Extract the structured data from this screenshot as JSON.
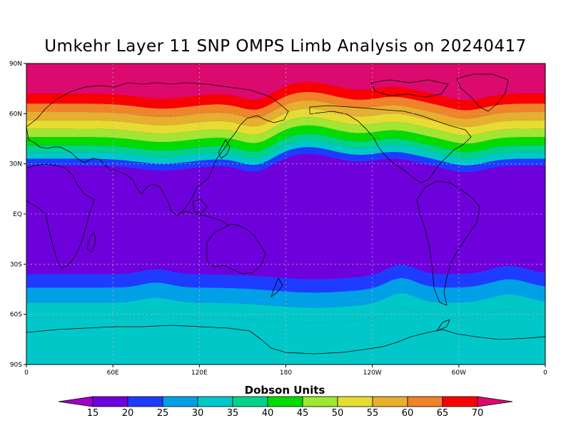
{
  "title": "Umkehr Layer 11 SNP OMPS Limb Analysis on 20240417",
  "colorbar": {
    "label": "Dobson Units",
    "ticks": [
      "15",
      "20",
      "25",
      "30",
      "35",
      "40",
      "45",
      "50",
      "55",
      "60",
      "65",
      "70"
    ],
    "colors": [
      "#a000c8",
      "#6e00dc",
      "#1e3cff",
      "#00a0e6",
      "#00c8c8",
      "#00d28c",
      "#00dc00",
      "#a0e632",
      "#e6dc32",
      "#e6af2d",
      "#f08228",
      "#fa0000",
      "#dc0a6e"
    ]
  },
  "axes": {
    "lat_labels": [
      "90N",
      "60N",
      "30N",
      "EQ",
      "30S",
      "60S",
      "90S"
    ],
    "lon_labels": [
      "0",
      "60E",
      "120E",
      "180",
      "120W",
      "60W",
      "0"
    ]
  },
  "map": {
    "projection": "equirectangular",
    "lon_range": [
      0,
      360
    ],
    "lat_range": [
      -90,
      90
    ],
    "grid": true,
    "levels": [
      15,
      20,
      25,
      30,
      35,
      40,
      45,
      50,
      55,
      60,
      65,
      70
    ]
  }
}
